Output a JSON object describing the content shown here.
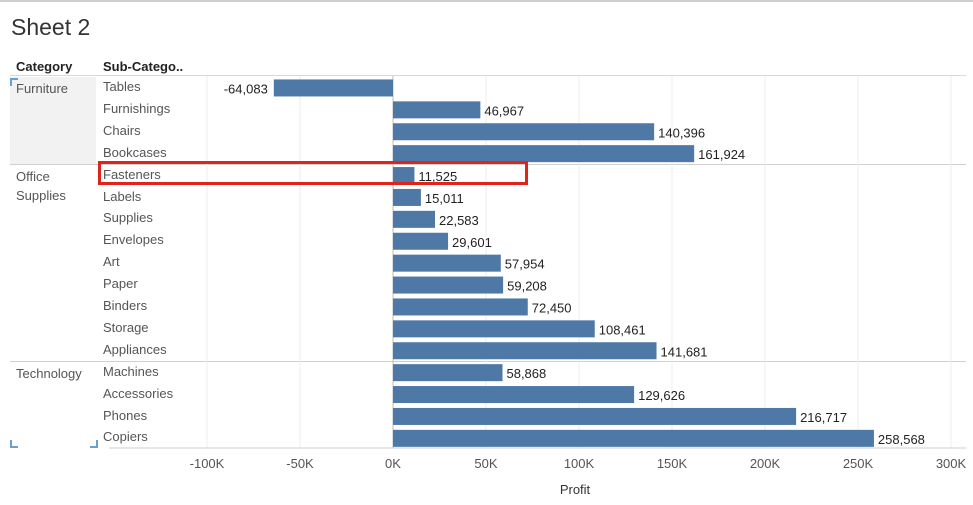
{
  "sheet": {
    "title": "Sheet 2"
  },
  "headers": {
    "category": "Category",
    "subcategory": "Sub-Catego.."
  },
  "categories": [
    {
      "label": "Furniture",
      "start": 0,
      "count": 4
    },
    {
      "label": "Office\nSupplies",
      "start": 4,
      "count": 9
    },
    {
      "label": "Technology",
      "start": 13,
      "count": 4
    }
  ],
  "chart_data": {
    "type": "bar",
    "orientation": "horizontal",
    "categories": [
      "Tables",
      "Furnishings",
      "Chairs",
      "Bookcases",
      "Fasteners",
      "Labels",
      "Supplies",
      "Envelopes",
      "Art",
      "Paper",
      "Binders",
      "Storage",
      "Appliances",
      "Machines",
      "Accessories",
      "Phones",
      "Copiers"
    ],
    "values": [
      -64083,
      46967,
      140396,
      161924,
      11525,
      15011,
      22583,
      29601,
      57954,
      59208,
      72450,
      108461,
      141681,
      58868,
      129626,
      216717,
      258568
    ],
    "data_labels": [
      "-64,083",
      "46,967",
      "140,396",
      "161,924",
      "11,525",
      "15,011",
      "22,583",
      "29,601",
      "57,954",
      "59,208",
      "72,450",
      "108,461",
      "141,681",
      "58,868",
      "129,626",
      "216,717",
      "258,568"
    ],
    "xlabel": "Profit",
    "xlim": [
      -100000,
      300000
    ],
    "ticks": [
      -100000,
      -50000,
      0,
      50000,
      100000,
      150000,
      200000,
      250000,
      300000
    ],
    "tick_labels": [
      "-100K",
      "-50K",
      "0K",
      "50K",
      "100K",
      "150K",
      "200K",
      "250K",
      "300K"
    ],
    "bar_color": "#4e79a7",
    "grid": true,
    "highlighted": "Fasteners"
  },
  "colors": {
    "bar": "#4e79a7",
    "highlight": "#e0231b"
  }
}
